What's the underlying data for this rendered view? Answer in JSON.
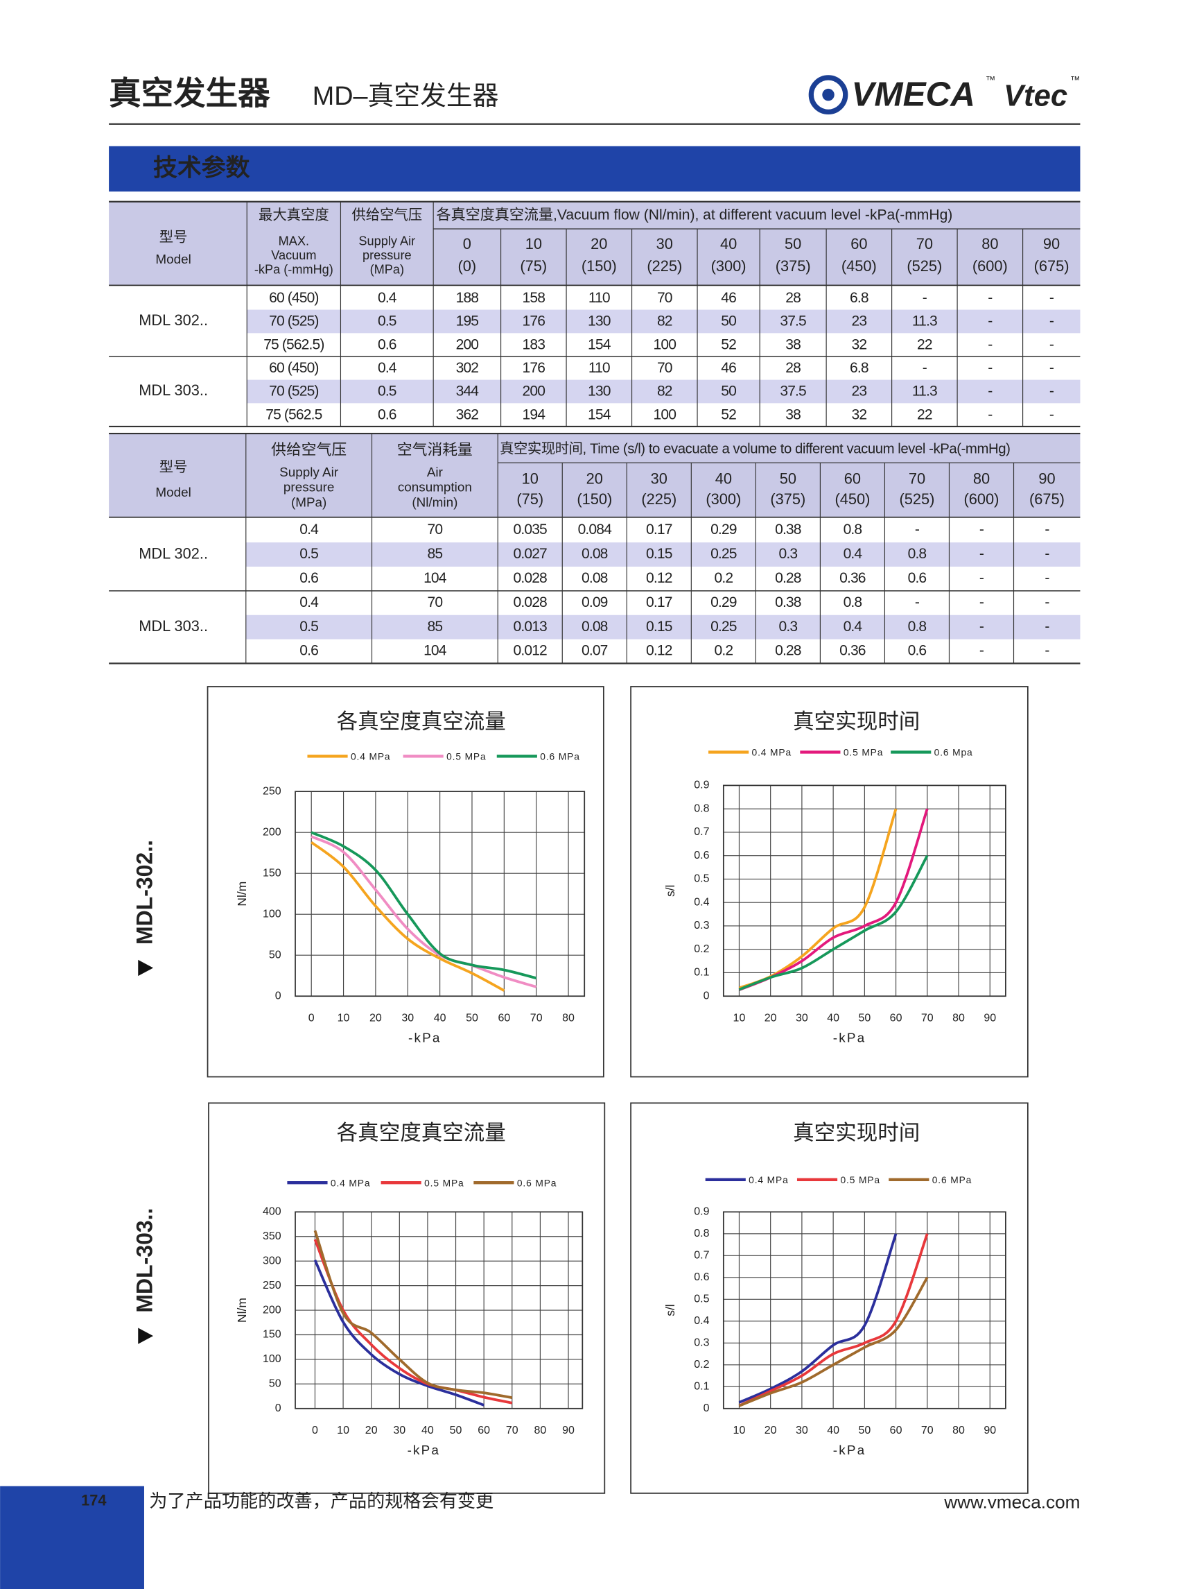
{
  "header": {
    "title": "真空发生器",
    "subtitle": "MD–真空发生器",
    "logo": "VMECA",
    "logo_mark": "™",
    "logo2": "Vtec",
    "logo2_mark": "™"
  },
  "section_title": "技术参数",
  "table1": {
    "model_header": {
      "zh": "型号",
      "en": "Model"
    },
    "columns": [
      {
        "zh": "最大真空度",
        "en": [
          "MAX.",
          "Vacuum",
          "-kPa (-mmHg)"
        ]
      },
      {
        "zh": "供给空气压",
        "en": [
          "Supply Air",
          "pressure",
          "(MPa)"
        ]
      }
    ],
    "flow_header": "各真空度真空流量,Vacuum flow (Nl/min), at different vacuum level -kPa(-mmHg)",
    "levels": [
      [
        "0",
        "(0)"
      ],
      [
        "10",
        "(75)"
      ],
      [
        "20",
        "(150)"
      ],
      [
        "30",
        "(225)"
      ],
      [
        "40",
        "(300)"
      ],
      [
        "50",
        "(375)"
      ],
      [
        "60",
        "(450)"
      ],
      [
        "70",
        "(525)"
      ],
      [
        "80",
        "(600)"
      ],
      [
        "90",
        "(675)"
      ]
    ],
    "groups": [
      {
        "model": "MDL 302..",
        "rows": [
          [
            "60 (450)",
            "0.4",
            "188",
            "158",
            "110",
            "70",
            "46",
            "28",
            "6.8",
            "-",
            "-",
            "-"
          ],
          [
            "70 (525)",
            "0.5",
            "195",
            "176",
            "130",
            "82",
            "50",
            "37.5",
            "23",
            "11.3",
            "-",
            "-"
          ],
          [
            "75 (562.5)",
            "0.6",
            "200",
            "183",
            "154",
            "100",
            "52",
            "38",
            "32",
            "22",
            "-",
            "-"
          ]
        ]
      },
      {
        "model": "MDL 303..",
        "rows": [
          [
            "60 (450)",
            "0.4",
            "302",
            "176",
            "110",
            "70",
            "46",
            "28",
            "6.8",
            "-",
            "-",
            "-"
          ],
          [
            "70 (525)",
            "0.5",
            "344",
            "200",
            "130",
            "82",
            "50",
            "37.5",
            "23",
            "11.3",
            "-",
            "-"
          ],
          [
            "75 (562.5",
            "0.6",
            "362",
            "194",
            "154",
            "100",
            "52",
            "38",
            "32",
            "22",
            "-",
            "-"
          ]
        ]
      }
    ]
  },
  "table2": {
    "model_header": {
      "zh": "型号",
      "en": "Model"
    },
    "columns": [
      {
        "zh": "供给空气压",
        "en": [
          "Supply Air",
          "pressure",
          "(MPa)"
        ]
      },
      {
        "zh": "空气消耗量",
        "en": [
          "Air",
          "consumption",
          "(Nl/min)"
        ]
      }
    ],
    "time_header": "真空实现时间, Time (s/l) to evacuate a volume to different vacuum level -kPa(-mmHg)",
    "levels": [
      [
        "10",
        "(75)"
      ],
      [
        "20",
        "(150)"
      ],
      [
        "30",
        "(225)"
      ],
      [
        "40",
        "(300)"
      ],
      [
        "50",
        "(375)"
      ],
      [
        "60",
        "(450)"
      ],
      [
        "70",
        "(525)"
      ],
      [
        "80",
        "(600)"
      ],
      [
        "90",
        "(675)"
      ]
    ],
    "groups": [
      {
        "model": "MDL 302..",
        "rows": [
          [
            "0.4",
            "70",
            "0.035",
            "0.084",
            "0.17",
            "0.29",
            "0.38",
            "0.8",
            "-",
            "-",
            "-"
          ],
          [
            "0.5",
            "85",
            "0.027",
            "0.08",
            "0.15",
            "0.25",
            "0.3",
            "0.4",
            "0.8",
            "-",
            "-"
          ],
          [
            "0.6",
            "104",
            "0.028",
            "0.08",
            "0.12",
            "0.2",
            "0.28",
            "0.36",
            "0.6",
            "-",
            "-"
          ]
        ]
      },
      {
        "model": "MDL 303..",
        "rows": [
          [
            "0.4",
            "70",
            "0.028",
            "0.09",
            "0.17",
            "0.29",
            "0.38",
            "0.8",
            "-",
            "-",
            "-"
          ],
          [
            "0.5",
            "85",
            "0.013",
            "0.08",
            "0.15",
            "0.25",
            "0.3",
            "0.4",
            "0.8",
            "-",
            "-"
          ],
          [
            "0.6",
            "104",
            "0.012",
            "0.07",
            "0.12",
            "0.2",
            "0.28",
            "0.36",
            "0.6",
            "-",
            "-"
          ]
        ]
      }
    ]
  },
  "side_labels": [
    "MDL-302..",
    "MDL-303.."
  ],
  "chart_data": [
    {
      "type": "line",
      "title": "各真空度真空流量",
      "xlabel": "-kPa",
      "ylabel": "Nl/m",
      "x": [
        0,
        10,
        20,
        30,
        40,
        50,
        60,
        70
      ],
      "series": [
        {
          "name": "0.4 MPa",
          "color": "#f5a41e",
          "values": [
            188,
            158,
            110,
            70,
            46,
            28,
            6.8,
            null
          ]
        },
        {
          "name": "0.5 MPa",
          "color": "#f08cc3",
          "values": [
            195,
            176,
            130,
            82,
            50,
            37.5,
            23,
            11.3
          ]
        },
        {
          "name": "0.6 MPa",
          "color": "#16985a",
          "values": [
            200,
            183,
            154,
            100,
            52,
            38,
            32,
            22
          ]
        }
      ],
      "xlim": [
        -5,
        85
      ],
      "xticks": [
        0,
        10,
        20,
        30,
        40,
        50,
        60,
        70,
        80
      ],
      "ylim": [
        0,
        250
      ],
      "yticks": [
        0,
        50,
        100,
        150,
        200,
        250
      ],
      "grid": true
    },
    {
      "type": "line",
      "title": "真空实现时间",
      "xlabel": "-kPa",
      "ylabel": "s/l",
      "x": [
        10,
        20,
        30,
        40,
        50,
        60,
        70
      ],
      "series": [
        {
          "name": "0.4 MPa",
          "color": "#f5a41e",
          "values": [
            0.035,
            0.084,
            0.17,
            0.29,
            0.38,
            0.8,
            null
          ]
        },
        {
          "name": "0.5 MPa",
          "color": "#e3197c",
          "values": [
            0.027,
            0.08,
            0.15,
            0.25,
            0.3,
            0.4,
            0.8
          ]
        },
        {
          "name": "0.6 Mpa",
          "color": "#16985a",
          "values": [
            0.028,
            0.08,
            0.12,
            0.2,
            0.28,
            0.36,
            0.6
          ]
        }
      ],
      "xlim": [
        5,
        95
      ],
      "xticks": [
        10,
        20,
        30,
        40,
        50,
        60,
        70,
        80,
        90
      ],
      "ylim": [
        0,
        0.9
      ],
      "yticks": [
        0,
        0.1,
        0.2,
        0.3,
        0.4,
        0.5,
        0.6,
        0.7,
        0.8,
        0.9
      ],
      "grid": true
    },
    {
      "type": "line",
      "title": "各真空度真空流量",
      "xlabel": "-kPa",
      "ylabel": "Nl/m",
      "x": [
        0,
        10,
        20,
        30,
        40,
        50,
        60,
        70
      ],
      "series": [
        {
          "name": "0.4 MPa",
          "color": "#2b2f9c",
          "values": [
            302,
            176,
            110,
            70,
            46,
            28,
            6.8,
            null
          ]
        },
        {
          "name": "0.5 MPa",
          "color": "#e8383b",
          "values": [
            344,
            200,
            130,
            82,
            50,
            37.5,
            23,
            11.3
          ]
        },
        {
          "name": "0.6 MPa",
          "color": "#a06a2c",
          "values": [
            362,
            194,
            154,
            100,
            52,
            38,
            32,
            22
          ]
        }
      ],
      "xlim": [
        -7,
        95
      ],
      "xticks": [
        0,
        10,
        20,
        30,
        40,
        50,
        60,
        70,
        80,
        90
      ],
      "ylim": [
        0,
        400
      ],
      "yticks": [
        0,
        50,
        100,
        150,
        200,
        250,
        300,
        350,
        400
      ],
      "grid": true
    },
    {
      "type": "line",
      "title": "真空实现时间",
      "xlabel": "-kPa",
      "ylabel": "s/l",
      "x": [
        10,
        20,
        30,
        40,
        50,
        60,
        70
      ],
      "series": [
        {
          "name": "0.4 MPa",
          "color": "#2b2f9c",
          "values": [
            0.028,
            0.09,
            0.17,
            0.29,
            0.38,
            0.8,
            null
          ]
        },
        {
          "name": "0.5 MPa",
          "color": "#e8383b",
          "values": [
            0.013,
            0.08,
            0.15,
            0.25,
            0.3,
            0.4,
            0.8
          ]
        },
        {
          "name": "0.6 MPa",
          "color": "#a06a2c",
          "values": [
            0.012,
            0.07,
            0.12,
            0.2,
            0.28,
            0.36,
            0.6
          ]
        }
      ],
      "xlim": [
        5,
        95
      ],
      "xticks": [
        10,
        20,
        30,
        40,
        50,
        60,
        70,
        80,
        90
      ],
      "ylim": [
        0,
        0.9
      ],
      "yticks": [
        0,
        0.1,
        0.2,
        0.3,
        0.4,
        0.5,
        0.6,
        0.7,
        0.8,
        0.9
      ],
      "grid": true
    }
  ],
  "footer": {
    "page": "174",
    "note": "为了产品功能的改善，产品的规格会有变更",
    "url": "www.vmeca.com"
  }
}
